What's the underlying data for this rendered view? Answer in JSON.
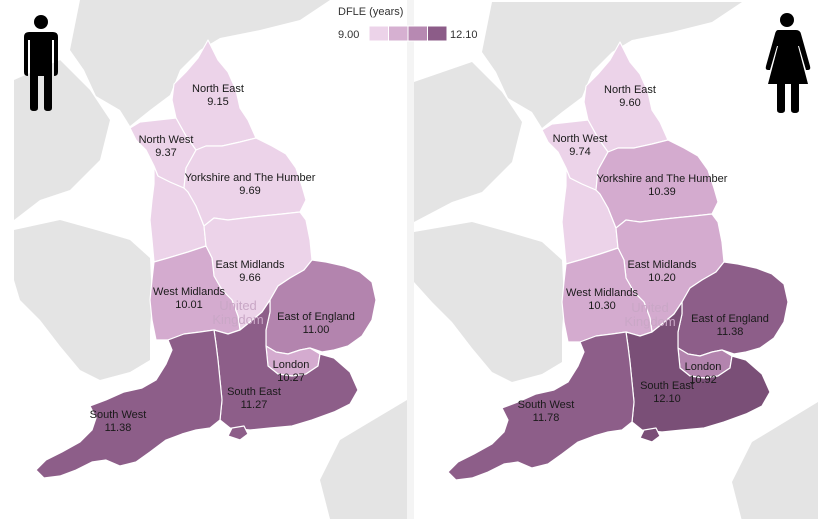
{
  "legend": {
    "title": "DFLE (years)",
    "min_label": "9.00",
    "max_label": "12.10",
    "colors": [
      "#ecd3e9",
      "#d6b0d1",
      "#b789b2",
      "#8c5c88"
    ]
  },
  "background_label": {
    "line1": "United",
    "line2": "Kingdom"
  },
  "colors": {
    "c1": "#ecd3e9",
    "c2": "#d4abcf",
    "c3": "#b384ae",
    "c4": "#8d5e89",
    "c5": "#7a4f77",
    "land": "#e4e4e4",
    "sea": "#ffffff",
    "region_border": "#ffffff"
  },
  "panels": [
    {
      "icon": "male-figure-icon",
      "regions": [
        {
          "name": "North East",
          "value": "9.15"
        },
        {
          "name": "North West",
          "value": "9.37"
        },
        {
          "name": "Yorkshire and The Humber",
          "value": "9.69"
        },
        {
          "name": "East Midlands",
          "value": "9.66"
        },
        {
          "name": "West Midlands",
          "value": "10.01"
        },
        {
          "name": "East of England",
          "value": "11.00"
        },
        {
          "name": "London",
          "value": "10.27"
        },
        {
          "name": "South East",
          "value": "11.27"
        },
        {
          "name": "South West",
          "value": "11.38"
        }
      ]
    },
    {
      "icon": "female-figure-icon",
      "regions": [
        {
          "name": "North East",
          "value": "9.60"
        },
        {
          "name": "North West",
          "value": "9.74"
        },
        {
          "name": "Yorkshire and The Humber",
          "value": "10.39"
        },
        {
          "name": "East Midlands",
          "value": "10.20"
        },
        {
          "name": "West Midlands",
          "value": "10.30"
        },
        {
          "name": "East of England",
          "value": "11.38"
        },
        {
          "name": "London",
          "value": "10.92"
        },
        {
          "name": "South East",
          "value": "12.10"
        },
        {
          "name": "South West",
          "value": "11.78"
        }
      ]
    }
  ]
}
